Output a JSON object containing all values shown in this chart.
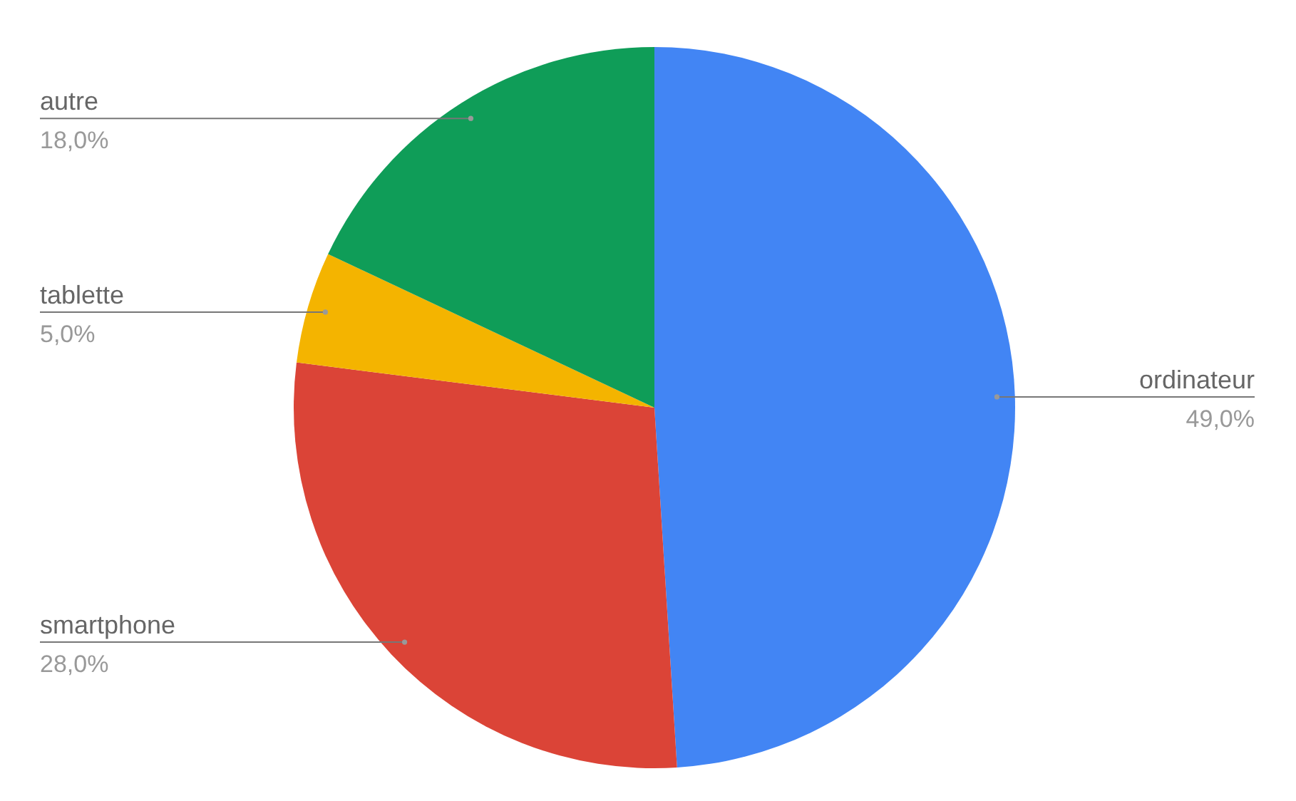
{
  "chart_data": {
    "type": "pie",
    "categories": [
      "ordinateur",
      "smartphone",
      "tablette",
      "autre"
    ],
    "values": [
      49,
      28,
      5,
      18
    ],
    "colors": [
      "#4285f4",
      "#db4437",
      "#f4b400",
      "#0f9d58"
    ],
    "value_labels": [
      "49,0%",
      "28,0%",
      "5,0%",
      "18,0%"
    ]
  }
}
